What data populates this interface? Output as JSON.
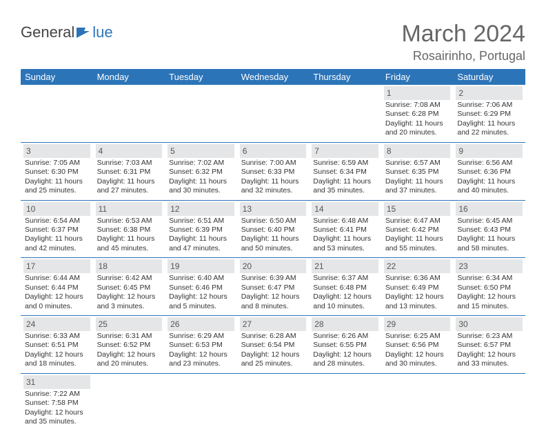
{
  "header": {
    "logo": {
      "part1": "General",
      "part2": "lue"
    },
    "title": "March 2024",
    "location": "Rosairinho, Portugal"
  },
  "style": {
    "header_bg": "#2c74b8",
    "header_fg": "#ffffff",
    "daynum_bg": "#e5e6e7",
    "cell_border": "#2c74b8",
    "logo_color": "#2c74b8",
    "text_color": "#333333",
    "title_color": "#666666"
  },
  "weekdays": [
    "Sunday",
    "Monday",
    "Tuesday",
    "Wednesday",
    "Thursday",
    "Friday",
    "Saturday"
  ],
  "weeks": [
    [
      null,
      null,
      null,
      null,
      null,
      {
        "n": "1",
        "sr": "7:08 AM",
        "ss": "6:28 PM",
        "dl": "11 hours and 20 minutes."
      },
      {
        "n": "2",
        "sr": "7:06 AM",
        "ss": "6:29 PM",
        "dl": "11 hours and 22 minutes."
      }
    ],
    [
      {
        "n": "3",
        "sr": "7:05 AM",
        "ss": "6:30 PM",
        "dl": "11 hours and 25 minutes."
      },
      {
        "n": "4",
        "sr": "7:03 AM",
        "ss": "6:31 PM",
        "dl": "11 hours and 27 minutes."
      },
      {
        "n": "5",
        "sr": "7:02 AM",
        "ss": "6:32 PM",
        "dl": "11 hours and 30 minutes."
      },
      {
        "n": "6",
        "sr": "7:00 AM",
        "ss": "6:33 PM",
        "dl": "11 hours and 32 minutes."
      },
      {
        "n": "7",
        "sr": "6:59 AM",
        "ss": "6:34 PM",
        "dl": "11 hours and 35 minutes."
      },
      {
        "n": "8",
        "sr": "6:57 AM",
        "ss": "6:35 PM",
        "dl": "11 hours and 37 minutes."
      },
      {
        "n": "9",
        "sr": "6:56 AM",
        "ss": "6:36 PM",
        "dl": "11 hours and 40 minutes."
      }
    ],
    [
      {
        "n": "10",
        "sr": "6:54 AM",
        "ss": "6:37 PM",
        "dl": "11 hours and 42 minutes."
      },
      {
        "n": "11",
        "sr": "6:53 AM",
        "ss": "6:38 PM",
        "dl": "11 hours and 45 minutes."
      },
      {
        "n": "12",
        "sr": "6:51 AM",
        "ss": "6:39 PM",
        "dl": "11 hours and 47 minutes."
      },
      {
        "n": "13",
        "sr": "6:50 AM",
        "ss": "6:40 PM",
        "dl": "11 hours and 50 minutes."
      },
      {
        "n": "14",
        "sr": "6:48 AM",
        "ss": "6:41 PM",
        "dl": "11 hours and 53 minutes."
      },
      {
        "n": "15",
        "sr": "6:47 AM",
        "ss": "6:42 PM",
        "dl": "11 hours and 55 minutes."
      },
      {
        "n": "16",
        "sr": "6:45 AM",
        "ss": "6:43 PM",
        "dl": "11 hours and 58 minutes."
      }
    ],
    [
      {
        "n": "17",
        "sr": "6:44 AM",
        "ss": "6:44 PM",
        "dl": "12 hours and 0 minutes."
      },
      {
        "n": "18",
        "sr": "6:42 AM",
        "ss": "6:45 PM",
        "dl": "12 hours and 3 minutes."
      },
      {
        "n": "19",
        "sr": "6:40 AM",
        "ss": "6:46 PM",
        "dl": "12 hours and 5 minutes."
      },
      {
        "n": "20",
        "sr": "6:39 AM",
        "ss": "6:47 PM",
        "dl": "12 hours and 8 minutes."
      },
      {
        "n": "21",
        "sr": "6:37 AM",
        "ss": "6:48 PM",
        "dl": "12 hours and 10 minutes."
      },
      {
        "n": "22",
        "sr": "6:36 AM",
        "ss": "6:49 PM",
        "dl": "12 hours and 13 minutes."
      },
      {
        "n": "23",
        "sr": "6:34 AM",
        "ss": "6:50 PM",
        "dl": "12 hours and 15 minutes."
      }
    ],
    [
      {
        "n": "24",
        "sr": "6:33 AM",
        "ss": "6:51 PM",
        "dl": "12 hours and 18 minutes."
      },
      {
        "n": "25",
        "sr": "6:31 AM",
        "ss": "6:52 PM",
        "dl": "12 hours and 20 minutes."
      },
      {
        "n": "26",
        "sr": "6:29 AM",
        "ss": "6:53 PM",
        "dl": "12 hours and 23 minutes."
      },
      {
        "n": "27",
        "sr": "6:28 AM",
        "ss": "6:54 PM",
        "dl": "12 hours and 25 minutes."
      },
      {
        "n": "28",
        "sr": "6:26 AM",
        "ss": "6:55 PM",
        "dl": "12 hours and 28 minutes."
      },
      {
        "n": "29",
        "sr": "6:25 AM",
        "ss": "6:56 PM",
        "dl": "12 hours and 30 minutes."
      },
      {
        "n": "30",
        "sr": "6:23 AM",
        "ss": "6:57 PM",
        "dl": "12 hours and 33 minutes."
      }
    ],
    [
      {
        "n": "31",
        "sr": "7:22 AM",
        "ss": "7:58 PM",
        "dl": "12 hours and 35 minutes."
      },
      null,
      null,
      null,
      null,
      null,
      null
    ]
  ],
  "labels": {
    "sunrise": "Sunrise:",
    "sunset": "Sunset:",
    "daylight": "Daylight:"
  }
}
